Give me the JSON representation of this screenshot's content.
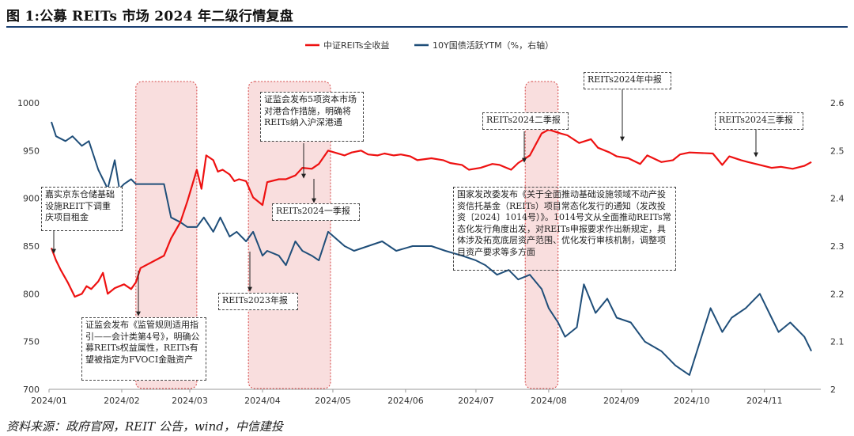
{
  "header": {
    "title": "图 1:公募 REITs 市场 2024 年二级行情复盘"
  },
  "footer": {
    "source": "资料来源：政府官网，REIT 公告，wind，中信建投"
  },
  "chart_data": {
    "type": "line",
    "legend": [
      "中证REITs全收益",
      "10Y国债活跃YTM（%，右轴）"
    ],
    "legend_position": "top-center",
    "x_ticks": [
      "2024/01",
      "2024/02",
      "2024/03",
      "2024/04",
      "2024/05",
      "2024/06",
      "2024/07",
      "2024/08",
      "2024/09",
      "2024/10",
      "2024/11"
    ],
    "y_left": {
      "ticks": [
        700,
        750,
        800,
        850,
        900,
        950,
        1000
      ],
      "lim": [
        700,
        1000
      ]
    },
    "y_right": {
      "ticks": [
        2,
        2.1,
        2.2,
        2.3,
        2.4,
        2.5,
        2.6
      ],
      "lim": [
        2,
        2.6
      ]
    },
    "grid": false,
    "colors": {
      "reits": "#ee1111",
      "bond": "#1f4e79",
      "highlight_fill": "#f6d0d0",
      "highlight_border": "#d44444"
    },
    "series": [
      {
        "name": "中证REITs全收益",
        "axis": "left",
        "x": [
          "2024-01-02",
          "2024-01-04",
          "2024-01-06",
          "2024-01-09",
          "2024-01-12",
          "2024-01-15",
          "2024-01-17",
          "2024-01-19",
          "2024-01-22",
          "2024-01-24",
          "2024-01-26",
          "2024-01-29",
          "2024-01-31",
          "2024-02-02",
          "2024-02-05",
          "2024-02-07",
          "2024-02-09",
          "2024-02-19",
          "2024-02-22",
          "2024-02-26",
          "2024-02-29",
          "2024-03-04",
          "2024-03-06",
          "2024-03-08",
          "2024-03-11",
          "2024-03-13",
          "2024-03-15",
          "2024-03-18",
          "2024-03-20",
          "2024-03-22",
          "2024-03-25",
          "2024-03-28",
          "2024-04-01",
          "2024-04-03",
          "2024-04-08",
          "2024-04-11",
          "2024-04-15",
          "2024-04-18",
          "2024-04-22",
          "2024-04-25",
          "2024-04-29",
          "2024-05-06",
          "2024-05-09",
          "2024-05-13",
          "2024-05-16",
          "2024-05-20",
          "2024-05-23",
          "2024-05-27",
          "2024-05-30",
          "2024-06-03",
          "2024-06-06",
          "2024-06-12",
          "2024-06-17",
          "2024-06-20",
          "2024-06-25",
          "2024-06-28",
          "2024-07-03",
          "2024-07-08",
          "2024-07-11",
          "2024-07-16",
          "2024-07-19",
          "2024-07-24",
          "2024-07-29",
          "2024-08-01",
          "2024-08-06",
          "2024-08-09",
          "2024-08-14",
          "2024-08-19",
          "2024-08-22",
          "2024-08-27",
          "2024-08-30",
          "2024-09-04",
          "2024-09-09",
          "2024-09-12",
          "2024-09-18",
          "2024-09-23",
          "2024-09-26",
          "2024-09-30",
          "2024-10-10",
          "2024-10-14",
          "2024-10-17",
          "2024-10-22",
          "2024-10-25",
          "2024-10-30",
          "2024-11-04",
          "2024-11-08",
          "2024-11-13",
          "2024-11-18",
          "2024-11-21"
        ],
        "values": [
          848,
          835,
          825,
          812,
          797,
          800,
          808,
          805,
          813,
          822,
          800,
          806,
          808,
          810,
          805,
          812,
          827,
          840,
          858,
          875,
          897,
          930,
          910,
          945,
          940,
          928,
          930,
          925,
          918,
          920,
          918,
          901,
          893,
          917,
          920,
          920,
          924,
          932,
          931,
          936,
          950,
          945,
          948,
          950,
          946,
          945,
          947,
          945,
          946,
          944,
          940,
          942,
          940,
          937,
          935,
          930,
          932,
          936,
          935,
          930,
          937,
          945,
          968,
          972,
          968,
          966,
          958,
          962,
          953,
          948,
          944,
          942,
          936,
          945,
          938,
          940,
          946,
          948,
          947,
          935,
          944,
          940,
          938,
          935,
          932,
          933,
          931,
          934,
          938
        ]
      },
      {
        "name": "10Y国债活跃YTM（%，右轴）",
        "axis": "right",
        "x": [
          "2024-01-02",
          "2024-01-04",
          "2024-01-08",
          "2024-01-11",
          "2024-01-15",
          "2024-01-18",
          "2024-01-22",
          "2024-01-24",
          "2024-01-26",
          "2024-01-29",
          "2024-01-31",
          "2024-02-02",
          "2024-02-05",
          "2024-02-07",
          "2024-02-09",
          "2024-02-19",
          "2024-02-22",
          "2024-02-26",
          "2024-02-29",
          "2024-03-04",
          "2024-03-07",
          "2024-03-11",
          "2024-03-14",
          "2024-03-18",
          "2024-03-21",
          "2024-03-25",
          "2024-03-28",
          "2024-04-01",
          "2024-04-03",
          "2024-04-08",
          "2024-04-11",
          "2024-04-15",
          "2024-04-18",
          "2024-04-22",
          "2024-04-25",
          "2024-04-29",
          "2024-05-06",
          "2024-05-10",
          "2024-05-16",
          "2024-05-22",
          "2024-05-28",
          "2024-06-04",
          "2024-06-12",
          "2024-06-18",
          "2024-06-25",
          "2024-07-01",
          "2024-07-05",
          "2024-07-10",
          "2024-07-15",
          "2024-07-19",
          "2024-07-24",
          "2024-07-29",
          "2024-08-01",
          "2024-08-05",
          "2024-08-08",
          "2024-08-13",
          "2024-08-16",
          "2024-08-21",
          "2024-08-26",
          "2024-08-30",
          "2024-09-05",
          "2024-09-11",
          "2024-09-18",
          "2024-09-24",
          "2024-09-27",
          "2024-09-30",
          "2024-10-09",
          "2024-10-14",
          "2024-10-18",
          "2024-10-24",
          "2024-10-30",
          "2024-11-04",
          "2024-11-07",
          "2024-11-12",
          "2024-11-18",
          "2024-11-21"
        ],
        "values": [
          2.56,
          2.53,
          2.52,
          2.53,
          2.51,
          2.52,
          2.46,
          2.44,
          2.42,
          2.48,
          2.42,
          2.43,
          2.44,
          2.43,
          2.43,
          2.43,
          2.36,
          2.35,
          2.34,
          2.34,
          2.36,
          2.33,
          2.36,
          2.32,
          2.33,
          2.31,
          2.33,
          2.28,
          2.29,
          2.28,
          2.26,
          2.31,
          2.29,
          2.28,
          2.27,
          2.33,
          2.3,
          2.29,
          2.3,
          2.31,
          2.29,
          2.3,
          2.3,
          2.29,
          2.28,
          2.27,
          2.26,
          2.24,
          2.25,
          2.23,
          2.24,
          2.21,
          2.17,
          2.14,
          2.11,
          2.13,
          2.22,
          2.16,
          2.19,
          2.15,
          2.14,
          2.1,
          2.08,
          2.05,
          2.04,
          2.03,
          2.17,
          2.12,
          2.15,
          2.17,
          2.2,
          2.15,
          2.12,
          2.14,
          2.11,
          2.08
        ]
      }
    ],
    "annotations": [
      "嘉实京东仓储基础设施REIT下调重庆项目租金",
      "证监会发布《监管规则适用指引——会计类第4号》，明确公募REITs权益属性，REITs有望被指定为FVOCI金融资产",
      "证监会发布5项资本市场对港合作措施，明确将REITs纳入沪深港通",
      "REITs2024一季报",
      "REITs2023年报",
      "REITs2024二季报",
      "REITs2024年中报",
      "REITs2024三季报",
      "国家发改委发布《关于全面推动基础设施领域不动产投资信托基金（REITs）项目常态化发行的通知（发改投资〔2024〕1014号）》。1014号文从全面推动REITs常态化发行角度出发，对REITs申报要求作出新规定，具体涉及拓宽底层资产范围、优化发行审核机制，调整项目资产要求等多方面"
    ]
  }
}
